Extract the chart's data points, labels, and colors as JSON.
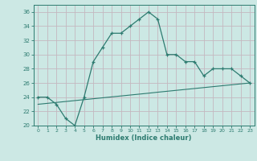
{
  "xlabel": "Humidex (Indice chaleur)",
  "x": [
    0,
    1,
    2,
    3,
    4,
    5,
    6,
    7,
    8,
    9,
    10,
    11,
    12,
    13,
    14,
    15,
    16,
    17,
    18,
    19,
    20,
    21,
    22,
    23
  ],
  "y_main": [
    24,
    24,
    23,
    21,
    20,
    24,
    29,
    31,
    33,
    33,
    34,
    35,
    36,
    35,
    30,
    30,
    29,
    29,
    27,
    28,
    28,
    28,
    27,
    26
  ],
  "y_linear": [
    23.0,
    23.13,
    23.26,
    23.39,
    23.52,
    23.65,
    23.78,
    23.91,
    24.04,
    24.17,
    24.3,
    24.43,
    24.56,
    24.7,
    24.83,
    24.96,
    25.09,
    25.22,
    25.35,
    25.48,
    25.61,
    25.74,
    25.87,
    26.0
  ],
  "line_color": "#2d7b70",
  "bg_color": "#cce8e4",
  "grid_color": "#c4b8c0",
  "ylim": [
    20,
    37
  ],
  "xlim": [
    -0.5,
    23.5
  ],
  "yticks": [
    20,
    22,
    24,
    26,
    28,
    30,
    32,
    34,
    36
  ],
  "xticks": [
    0,
    1,
    2,
    3,
    4,
    5,
    6,
    7,
    8,
    9,
    10,
    11,
    12,
    13,
    14,
    15,
    16,
    17,
    18,
    19,
    20,
    21,
    22,
    23
  ]
}
